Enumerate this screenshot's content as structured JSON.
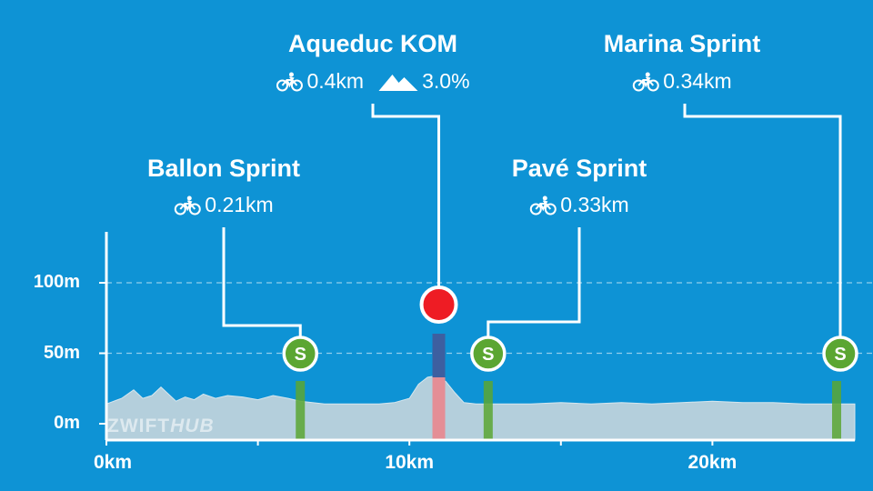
{
  "chart_data": {
    "type": "area",
    "xlabel": "",
    "ylabel": "",
    "x_ticks": [
      "0km",
      "10km",
      "20km"
    ],
    "y_ticks": [
      "0m",
      "50m",
      "100m"
    ],
    "xlim": [
      0,
      24.7
    ],
    "ylim": [
      0,
      130
    ],
    "elevation_profile": {
      "x_km": [
        0,
        0.5,
        0.9,
        1.2,
        1.5,
        1.8,
        2.0,
        2.3,
        2.6,
        2.9,
        3.2,
        3.6,
        4.0,
        4.5,
        5.0,
        5.5,
        6.0,
        6.4,
        6.8,
        7.2,
        7.6,
        8.0,
        8.5,
        9.0,
        9.5,
        10.0,
        10.3,
        10.6,
        10.9,
        11.2,
        11.5,
        11.8,
        12.2,
        12.6,
        13.0,
        13.5,
        14.0,
        15.0,
        16.0,
        17.0,
        18.0,
        19.0,
        20.0,
        21.0,
        22.0,
        23.0,
        24.0,
        24.7
      ],
      "elevation_m": [
        14,
        18,
        24,
        18,
        20,
        26,
        22,
        16,
        19,
        17,
        21,
        18,
        20,
        19,
        17,
        20,
        18,
        16,
        15,
        14,
        14,
        14,
        14,
        14,
        15,
        18,
        28,
        33,
        34,
        30,
        22,
        15,
        14,
        14,
        14,
        14,
        14,
        15,
        14,
        15,
        14,
        15,
        16,
        15,
        15,
        14,
        14,
        14
      ]
    },
    "segments": [
      {
        "name": "Ballon Sprint",
        "type": "sprint",
        "badge": "S",
        "start_km": 6.4,
        "length": "0.21km",
        "grade": ""
      },
      {
        "name": "Aqueduc KOM",
        "type": "kom",
        "badge": "",
        "start_km": 10.4,
        "length": "0.4km",
        "grade": "3.0%"
      },
      {
        "name": "Pavé Sprint",
        "type": "sprint",
        "badge": "S",
        "start_km": 12.6,
        "length": "0.33km",
        "grade": ""
      },
      {
        "name": "Marina Sprint",
        "type": "sprint",
        "badge": "S",
        "start_km": 24.1,
        "length": "0.34km",
        "grade": ""
      }
    ],
    "grid": true,
    "colors": {
      "background": "#0e93d5",
      "profile_fill": "#b4cfdc",
      "sprint": "#5ba632",
      "kom": "#ee1c24",
      "kom_band_upper": "#3d5fa0",
      "kom_band_lower": "#e48e96"
    }
  },
  "watermark": {
    "part1": "ZWIFT",
    "part2": "HUB"
  },
  "icons": {
    "segment_length": "bicycle-icon",
    "grade": "mountain-icon"
  }
}
